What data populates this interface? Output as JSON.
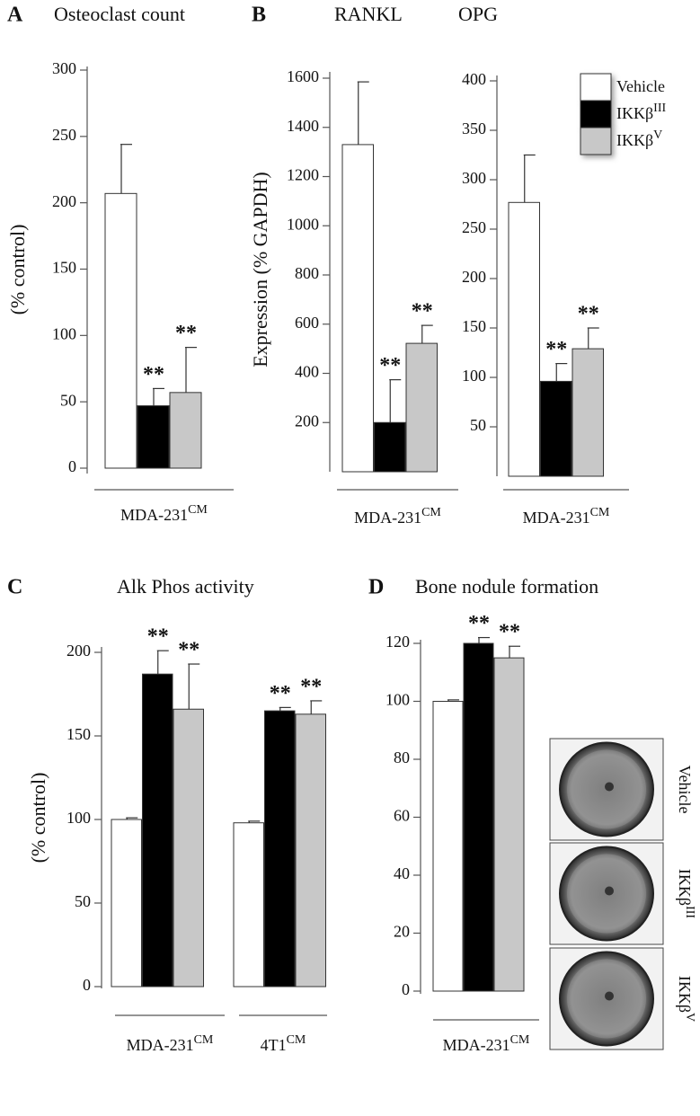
{
  "chart_data": [
    {
      "type": "bar",
      "panel": "A",
      "title": "Osteoclast count",
      "ylabel": "(% control)",
      "ylim": [
        0,
        300
      ],
      "yticks": [
        0,
        50,
        100,
        150,
        200,
        250,
        300
      ],
      "groups": [
        {
          "text": "MDA-231",
          "sup": "CM"
        }
      ],
      "series": [
        {
          "color": "#ffffff",
          "values": [
            207
          ],
          "errors": [
            37
          ],
          "significance": [
            null
          ]
        },
        {
          "color": "#000000",
          "values": [
            47
          ],
          "errors": [
            13
          ],
          "significance": [
            "**"
          ]
        },
        {
          "color": "#c8c8c8",
          "values": [
            57
          ],
          "errors": [
            34
          ],
          "significance": [
            "**"
          ]
        }
      ]
    },
    {
      "type": "bar",
      "panel": "B",
      "title": "RANKL",
      "ylabel": "Expression (% GAPDH)",
      "ylim": [
        0,
        1600
      ],
      "yticks": [
        200,
        400,
        600,
        800,
        1000,
        1200,
        1400,
        1600
      ],
      "groups": [
        {
          "text": "MDA-231",
          "sup": "CM"
        }
      ],
      "series": [
        {
          "color": "#ffffff",
          "values": [
            1330
          ],
          "errors": [
            255
          ],
          "significance": [
            null
          ]
        },
        {
          "color": "#000000",
          "values": [
            200
          ],
          "errors": [
            174
          ],
          "significance": [
            "**"
          ]
        },
        {
          "color": "#c8c8c8",
          "values": [
            522
          ],
          "errors": [
            73
          ],
          "significance": [
            "**"
          ]
        }
      ]
    },
    {
      "type": "bar",
      "title": "OPG",
      "ylim": [
        0,
        400
      ],
      "yticks": [
        50,
        100,
        150,
        200,
        250,
        300,
        350,
        400
      ],
      "groups": [
        {
          "text": "MDA-231",
          "sup": "CM"
        }
      ],
      "legend": true,
      "series": [
        {
          "name": "Vehicle",
          "color": "#ffffff",
          "values": [
            277
          ],
          "errors": [
            48
          ],
          "significance": [
            null
          ]
        },
        {
          "name": "IKKβ",
          "sup": "III",
          "color": "#000000",
          "values": [
            96
          ],
          "errors": [
            18
          ],
          "significance": [
            "**"
          ]
        },
        {
          "name": "IKKβ",
          "sup": "V",
          "color": "#c8c8c8",
          "values": [
            129
          ],
          "errors": [
            21
          ],
          "significance": [
            "**"
          ]
        }
      ]
    },
    {
      "type": "bar",
      "panel": "C",
      "title": "Alk Phos activity",
      "ylabel": "(% control)",
      "ylim": [
        0,
        200
      ],
      "yticks": [
        0,
        50,
        100,
        150,
        200
      ],
      "groups": [
        {
          "text": "MDA-231",
          "sup": "CM"
        },
        {
          "text": "4T1",
          "sup": "CM"
        }
      ],
      "series": [
        {
          "color": "#ffffff",
          "values": [
            100,
            98
          ],
          "errors": [
            1,
            1
          ],
          "significance": [
            null,
            null
          ]
        },
        {
          "color": "#000000",
          "values": [
            187,
            165
          ],
          "errors": [
            14,
            2
          ],
          "significance": [
            "**",
            "**"
          ]
        },
        {
          "color": "#c8c8c8",
          "values": [
            166,
            163
          ],
          "errors": [
            27,
            8
          ],
          "significance": [
            "**",
            "**"
          ]
        }
      ]
    },
    {
      "type": "bar",
      "panel": "D",
      "title": "Bone nodule formation",
      "ylim": [
        0,
        120
      ],
      "yticks": [
        0,
        20,
        40,
        60,
        80,
        100,
        120
      ],
      "groups": [
        {
          "text": "MDA-231",
          "sup": "CM"
        }
      ],
      "series": [
        {
          "color": "#ffffff",
          "values": [
            100
          ],
          "errors": [
            0.5
          ],
          "significance": [
            null
          ]
        },
        {
          "color": "#000000",
          "values": [
            120
          ],
          "errors": [
            2
          ],
          "significance": [
            "**"
          ]
        },
        {
          "color": "#c8c8c8",
          "values": [
            115
          ],
          "errors": [
            4
          ],
          "significance": [
            "**"
          ]
        }
      ],
      "images": [
        {
          "text": "Vehicle"
        },
        {
          "text": "IKKβ",
          "sup": "III"
        },
        {
          "text": "IKKβ",
          "sup": "V"
        }
      ]
    }
  ]
}
